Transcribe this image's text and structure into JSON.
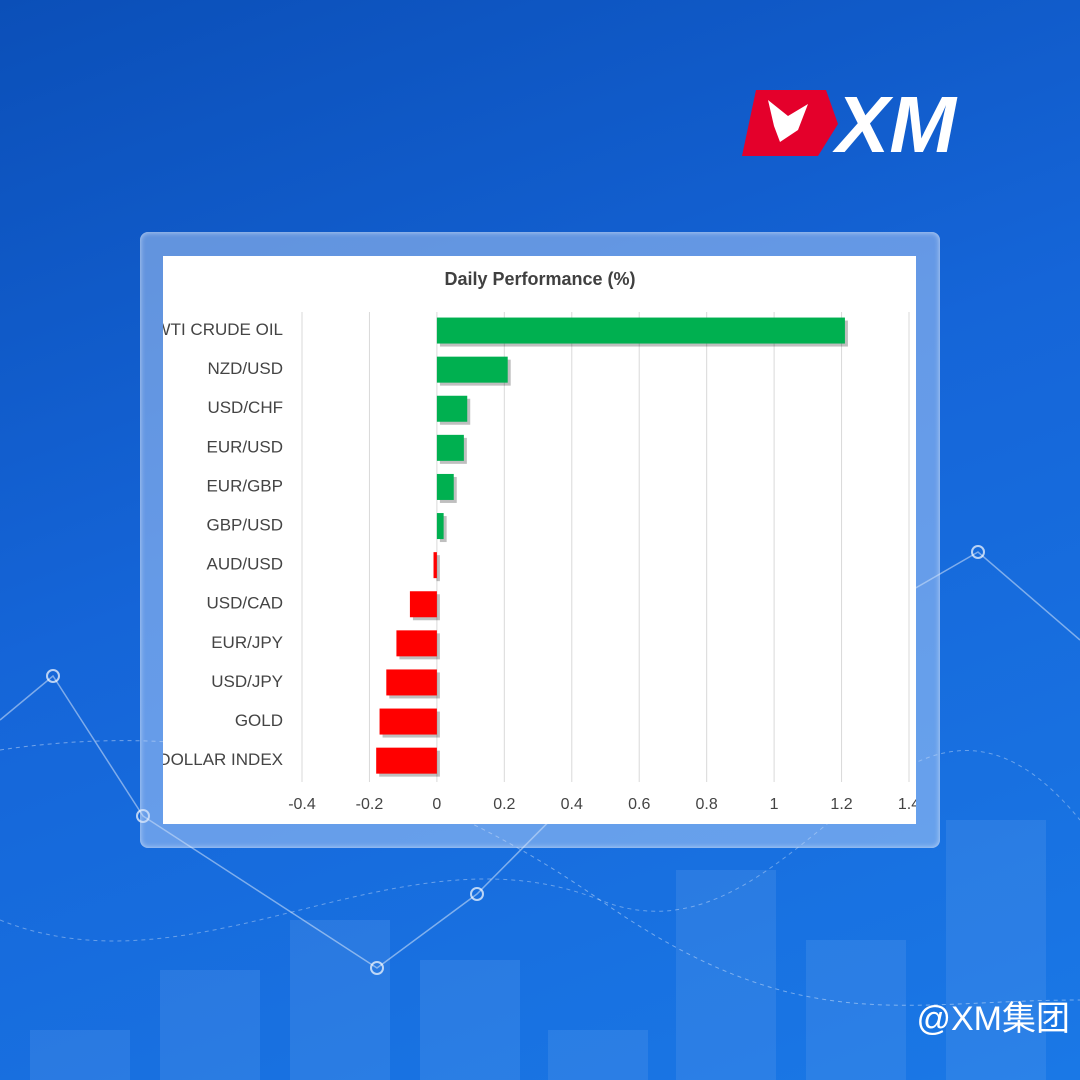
{
  "brand": {
    "logo_text": "XM",
    "handle": "@XM集团"
  },
  "chart_data": {
    "type": "hbar",
    "title": "Daily Performance (%)",
    "categories": [
      "WTI CRUDE OIL",
      "NZD/USD",
      "USD/CHF",
      "EUR/USD",
      "EUR/GBP",
      "GBP/USD",
      "AUD/USD",
      "USD/CAD",
      "EUR/JPY",
      "USD/JPY",
      "GOLD",
      "DOLLAR INDEX"
    ],
    "values": [
      1.21,
      0.21,
      0.09,
      0.08,
      0.05,
      0.02,
      -0.01,
      -0.08,
      -0.12,
      -0.15,
      -0.17,
      -0.18
    ],
    "positive_color": "#00b050",
    "negative_color": "#ff0000",
    "xlim": [
      -0.4,
      1.4
    ],
    "xticks": [
      -0.4,
      -0.2,
      0,
      0.2,
      0.4,
      0.6,
      0.8,
      1,
      1.2,
      1.4
    ],
    "grid": true
  }
}
